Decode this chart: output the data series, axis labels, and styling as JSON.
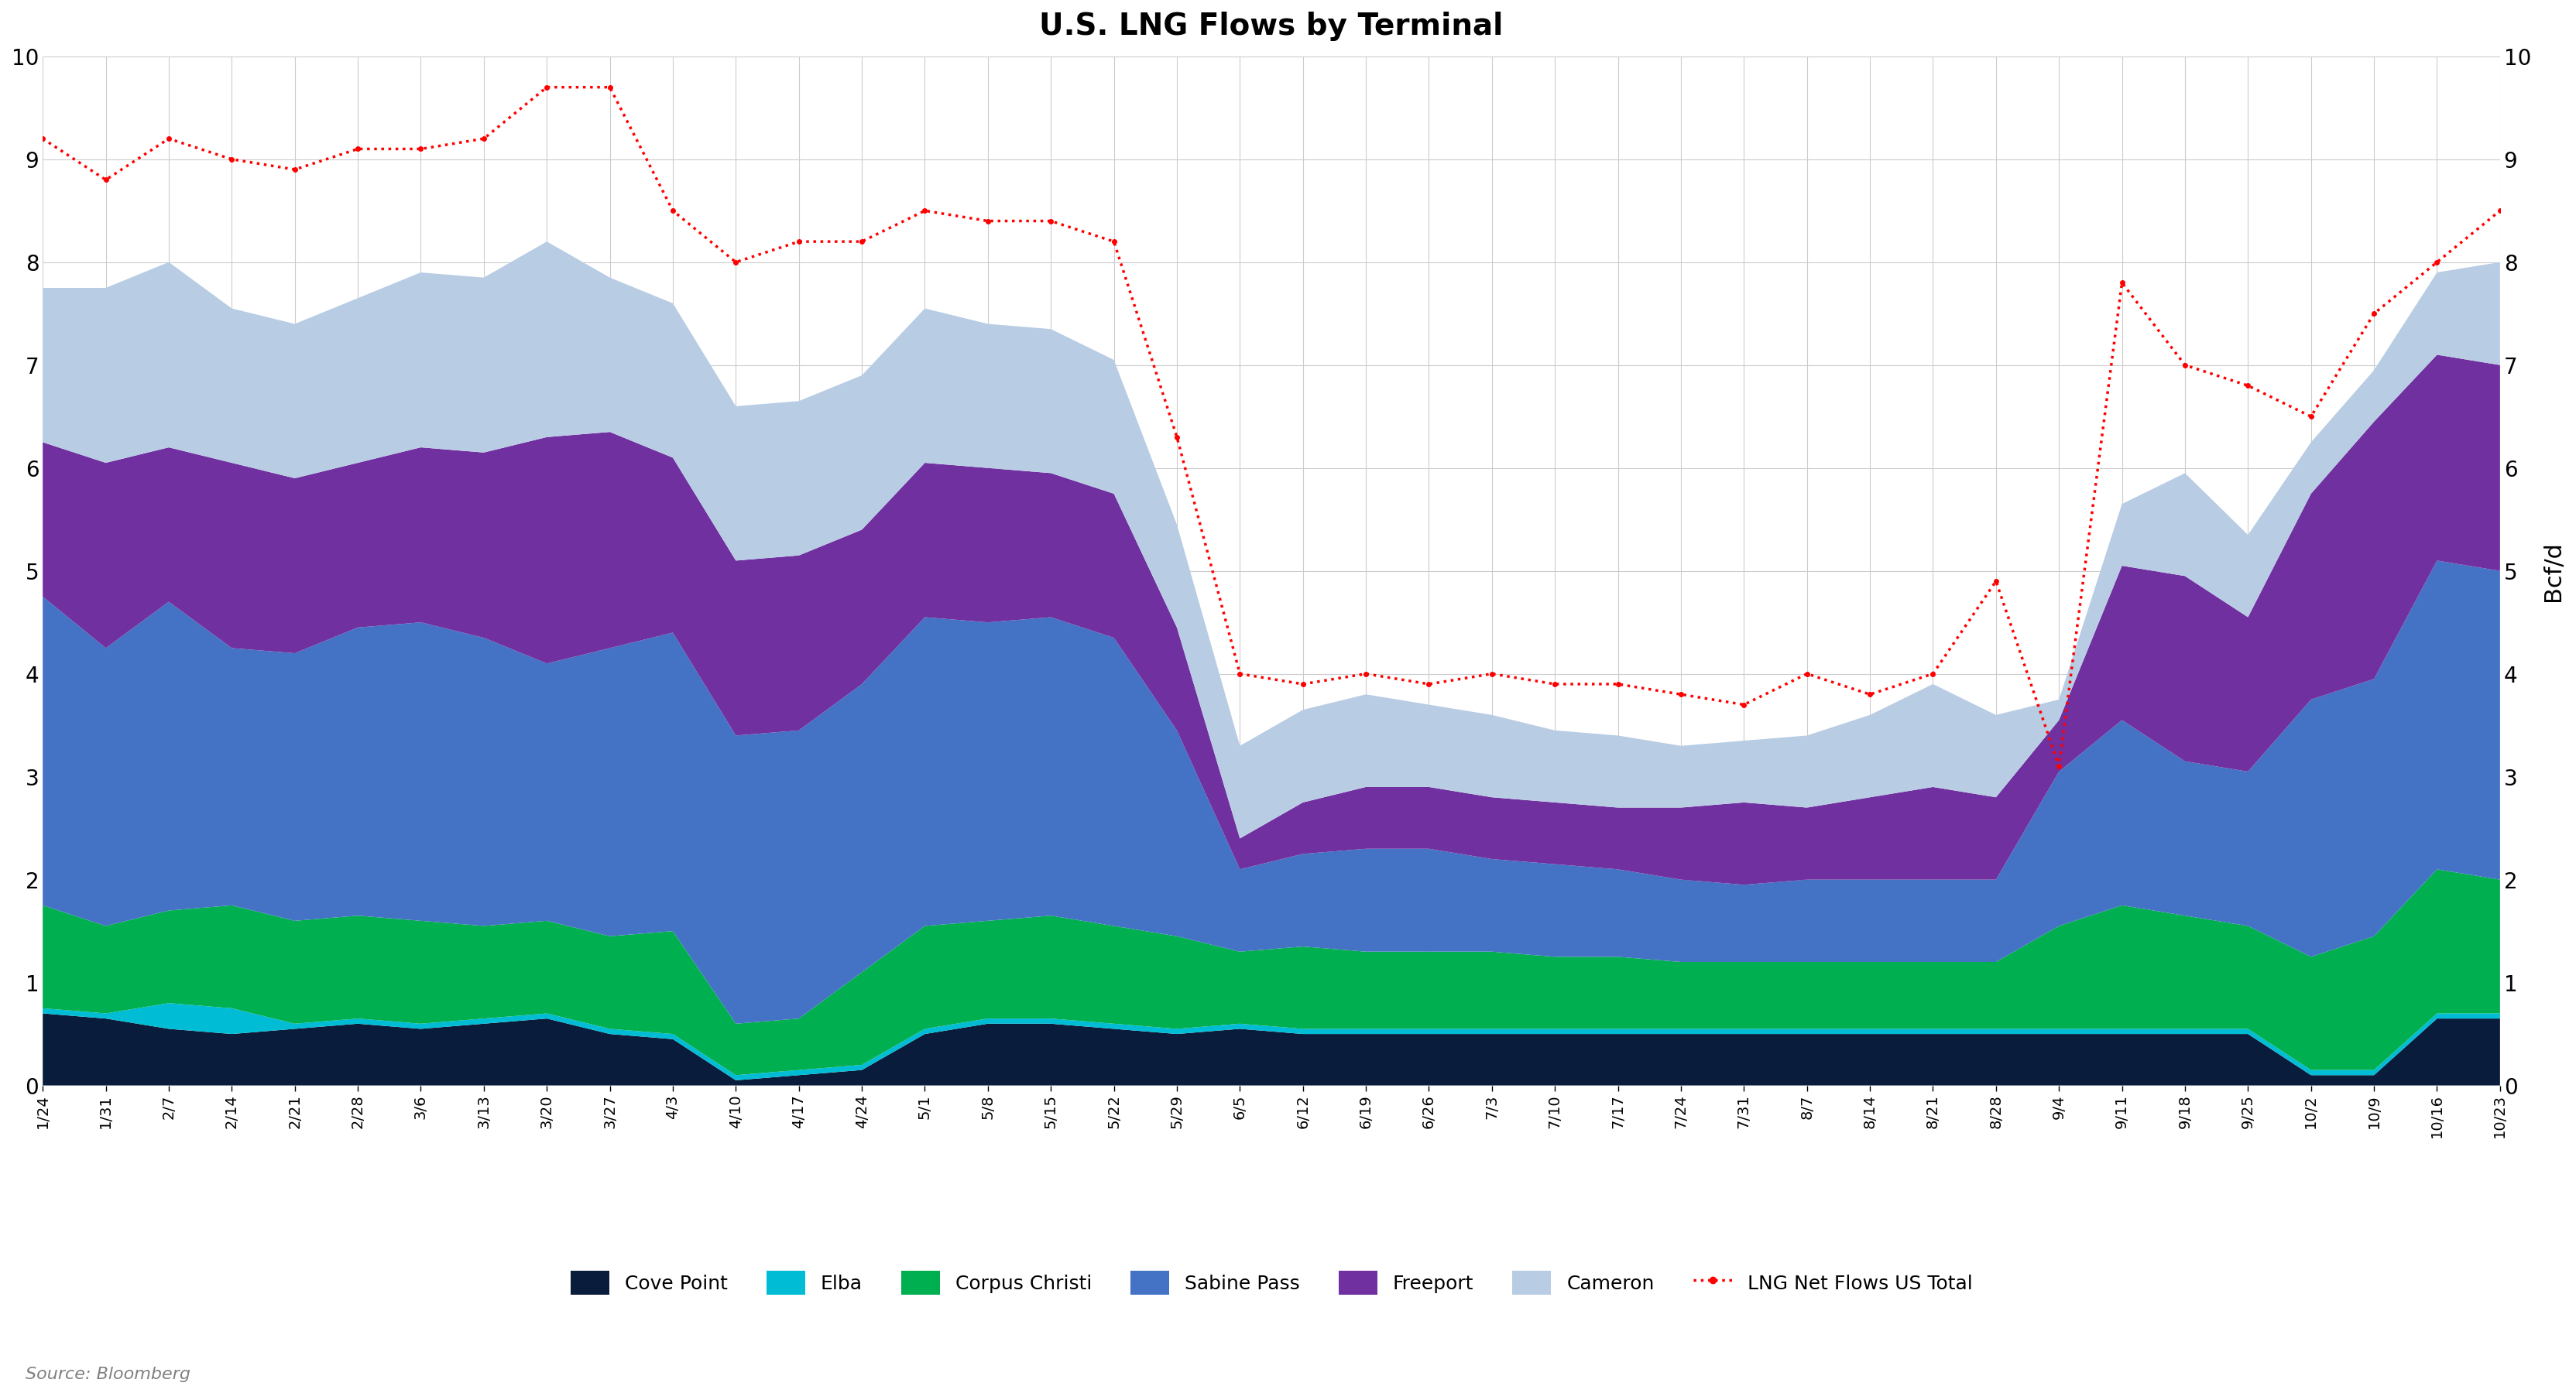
{
  "title": "U.S. LNG Flows by Terminal",
  "ylabel_right": "Bcf/d",
  "source": "Source: Bloomberg",
  "background_color": "#ffffff",
  "plot_background": "#ffffff",
  "grid_color": "#cccccc",
  "ylim": [
    0,
    10
  ],
  "yticks": [
    0,
    1,
    2,
    3,
    4,
    5,
    6,
    7,
    8,
    9,
    10
  ],
  "colors": {
    "cove_point": "#0a1c3b",
    "elba": "#00bcd4",
    "corpus_christi": "#00b050",
    "sabine_pass": "#4472c4",
    "freeport": "#7030a0",
    "cameron": "#b8cce4",
    "lng_total": "#ff0000"
  },
  "x_dates": [
    "1/24",
    "1/31",
    "2/7",
    "2/14",
    "2/21",
    "2/28",
    "3/6",
    "3/13",
    "3/20",
    "3/27",
    "4/3",
    "4/10",
    "4/17",
    "4/24",
    "5/1",
    "5/8",
    "5/15",
    "5/22",
    "5/29",
    "6/5",
    "6/12",
    "6/19",
    "6/26",
    "7/3",
    "7/10",
    "7/17",
    "7/24",
    "7/31",
    "8/7",
    "8/14",
    "8/21",
    "8/28",
    "9/4",
    "9/11",
    "9/18",
    "9/25",
    "10/2",
    "10/9",
    "10/16",
    "10/23"
  ],
  "cove_point": [
    0.7,
    0.65,
    0.55,
    0.5,
    0.55,
    0.6,
    0.55,
    0.6,
    0.65,
    0.5,
    0.45,
    0.05,
    0.1,
    0.15,
    0.5,
    0.6,
    0.6,
    0.55,
    0.5,
    0.55,
    0.5,
    0.5,
    0.5,
    0.5,
    0.5,
    0.5,
    0.5,
    0.5,
    0.5,
    0.5,
    0.5,
    0.5,
    0.5,
    0.5,
    0.5,
    0.5,
    0.1,
    0.1,
    0.65,
    0.65
  ],
  "elba": [
    0.05,
    0.05,
    0.25,
    0.25,
    0.05,
    0.05,
    0.05,
    0.05,
    0.05,
    0.05,
    0.05,
    0.05,
    0.05,
    0.05,
    0.05,
    0.05,
    0.05,
    0.05,
    0.05,
    0.05,
    0.05,
    0.05,
    0.05,
    0.05,
    0.05,
    0.05,
    0.05,
    0.05,
    0.05,
    0.05,
    0.05,
    0.05,
    0.05,
    0.05,
    0.05,
    0.05,
    0.05,
    0.05,
    0.05,
    0.05
  ],
  "corpus_christi": [
    1.0,
    0.85,
    0.9,
    1.0,
    1.0,
    1.0,
    1.0,
    0.9,
    0.9,
    0.9,
    1.0,
    0.5,
    0.5,
    0.9,
    1.0,
    0.95,
    1.0,
    0.95,
    0.9,
    0.7,
    0.8,
    0.75,
    0.75,
    0.75,
    0.7,
    0.7,
    0.65,
    0.65,
    0.65,
    0.65,
    0.65,
    0.65,
    1.0,
    1.2,
    1.1,
    1.0,
    1.1,
    1.3,
    1.4,
    1.3
  ],
  "sabine_pass": [
    3.0,
    2.7,
    3.0,
    2.5,
    2.6,
    2.8,
    2.9,
    2.8,
    2.5,
    2.8,
    2.9,
    2.8,
    2.8,
    2.8,
    3.0,
    2.9,
    2.9,
    2.8,
    2.0,
    0.8,
    0.9,
    1.0,
    1.0,
    0.9,
    0.9,
    0.85,
    0.8,
    0.75,
    0.8,
    0.8,
    0.8,
    0.8,
    1.5,
    1.8,
    1.5,
    1.5,
    2.5,
    2.5,
    3.0,
    3.0
  ],
  "freeport": [
    1.5,
    1.8,
    1.5,
    1.8,
    1.7,
    1.6,
    1.7,
    1.8,
    2.2,
    2.1,
    1.7,
    1.7,
    1.7,
    1.5,
    1.5,
    1.5,
    1.4,
    1.4,
    1.0,
    0.3,
    0.5,
    0.6,
    0.6,
    0.6,
    0.6,
    0.6,
    0.7,
    0.8,
    0.7,
    0.8,
    0.9,
    0.8,
    0.5,
    1.5,
    1.8,
    1.5,
    2.0,
    2.5,
    2.0,
    2.0
  ],
  "cameron": [
    1.5,
    1.7,
    1.8,
    1.5,
    1.5,
    1.6,
    1.7,
    1.7,
    1.9,
    1.5,
    1.5,
    1.5,
    1.5,
    1.5,
    1.5,
    1.4,
    1.4,
    1.3,
    1.0,
    0.9,
    0.9,
    0.9,
    0.8,
    0.8,
    0.7,
    0.7,
    0.6,
    0.6,
    0.7,
    0.8,
    1.0,
    0.8,
    0.2,
    0.6,
    1.0,
    0.8,
    0.5,
    0.5,
    0.8,
    1.0
  ],
  "lng_total": [
    9.2,
    8.8,
    9.2,
    9.0,
    8.9,
    9.1,
    9.1,
    9.2,
    9.7,
    9.7,
    8.5,
    8.0,
    8.2,
    8.2,
    8.5,
    8.4,
    8.4,
    8.2,
    6.3,
    4.0,
    3.9,
    4.0,
    3.9,
    4.0,
    3.9,
    3.9,
    3.8,
    3.7,
    4.0,
    3.8,
    4.0,
    4.9,
    3.1,
    7.8,
    7.0,
    6.8,
    6.5,
    7.5,
    8.0,
    8.5
  ]
}
